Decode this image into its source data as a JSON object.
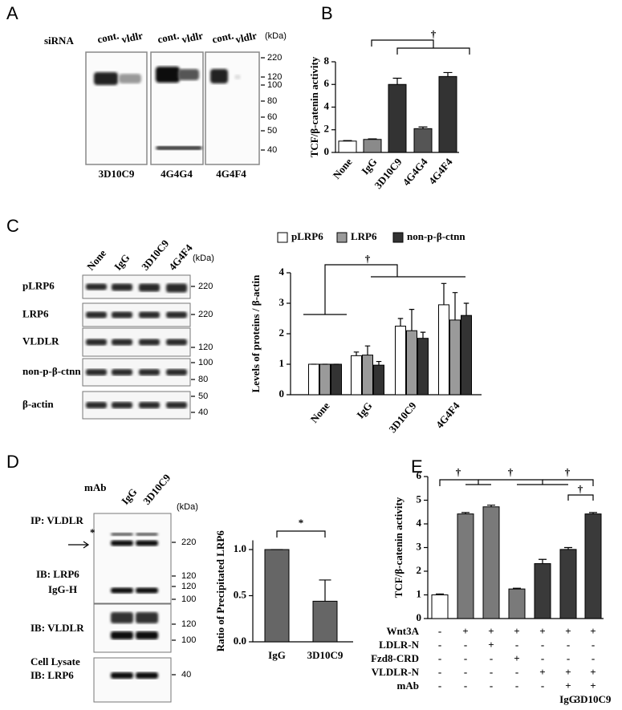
{
  "panel_letters": [
    "A",
    "B",
    "C",
    "D",
    "E"
  ],
  "blot_a": {
    "row_label": "siRNA",
    "lanes": [
      "cont.",
      "vldlr",
      "cont.",
      "vldlr",
      "cont.",
      "vldlr"
    ],
    "unit": "(kDa)",
    "markers": [
      220,
      120,
      100,
      80,
      60,
      50,
      40
    ],
    "antibodies": [
      "3D10C9",
      "4G4G4",
      "4G4F4"
    ]
  },
  "blot_c": {
    "lanes": [
      "None",
      "IgG",
      "3D10C9",
      "4G4F4"
    ],
    "unit": "(kDa)",
    "rows": [
      "pLRP6",
      "LRP6",
      "VLDLR",
      "non-p-β-ctnn",
      "β-actin"
    ],
    "markers": [
      220,
      220,
      120,
      100,
      80,
      50,
      40
    ]
  },
  "blot_d": {
    "row_label": "mAb",
    "lanes": [
      "IgG",
      "3D10C9"
    ],
    "unit": "(kDa)",
    "labels": [
      "IP: VLDLR",
      "*",
      "IB: LRP6",
      "IgG-H",
      "IB: VLDLR",
      "Cell Lysate",
      "IB: LRP6"
    ],
    "markers": [
      220,
      120,
      120,
      100,
      120,
      100,
      40
    ]
  },
  "chart_data": [
    {
      "type": "bar",
      "ylabel": "TCF/β-catenin activity",
      "categories": [
        "None",
        "IgG",
        "3D10C9",
        "4G4G4",
        "4G4F4"
      ],
      "values": [
        1.0,
        1.15,
        6.0,
        2.1,
        6.7
      ],
      "errors": [
        0.05,
        0.05,
        0.55,
        0.15,
        0.35
      ],
      "colors": [
        "#ffffff",
        "#8a8a8a",
        "#333333",
        "#555555",
        "#333333"
      ],
      "ylim": [
        0,
        8
      ],
      "yticks": [
        0,
        2,
        4,
        6,
        8
      ],
      "annotations": [
        "†"
      ]
    },
    {
      "type": "bar",
      "ylabel": "Levels of proteins / β-actin",
      "categories": [
        "None",
        "IgG",
        "3D10C9",
        "4G4F4"
      ],
      "series": [
        {
          "name": "pLRP6",
          "color": "#ffffff",
          "values": [
            1.0,
            1.28,
            2.25,
            2.95
          ],
          "errors": [
            0,
            0.12,
            0.25,
            0.7
          ]
        },
        {
          "name": "LRP6",
          "color": "#9a9a9a",
          "values": [
            1.0,
            1.3,
            2.1,
            2.45
          ],
          "errors": [
            0,
            0.3,
            0.7,
            0.9
          ]
        },
        {
          "name": "non-p-β-ctnn",
          "color": "#333333",
          "values": [
            1.0,
            0.97,
            1.85,
            2.6
          ],
          "errors": [
            0,
            0.12,
            0.2,
            0.4
          ]
        }
      ],
      "ylim": [
        0,
        4
      ],
      "yticks": [
        0,
        1,
        2,
        3,
        4
      ],
      "legend": "top",
      "annotations": [
        "†"
      ]
    },
    {
      "type": "bar",
      "ylabel": "Ratio of Precipitated LRP6",
      "categories": [
        "IgG",
        "3D10C9"
      ],
      "values": [
        1.0,
        0.44
      ],
      "errors": [
        0,
        0.23
      ],
      "colors": [
        "#666666",
        "#666666"
      ],
      "ylim": [
        0,
        1.1
      ],
      "yticks": [
        {
          "value": 0,
          "label": "0.0"
        },
        {
          "value": 0.5,
          "label": "0.5"
        },
        {
          "value": 1,
          "label": "1.0"
        }
      ],
      "annotations": [
        "*"
      ]
    },
    {
      "type": "bar",
      "ylabel": "TCF/β-catenin activity",
      "categories": [
        null,
        null,
        null,
        null,
        null,
        "IgG",
        "3D10C9"
      ],
      "values": [
        1.0,
        4.42,
        4.72,
        1.25,
        2.32,
        2.92,
        4.42
      ],
      "errors": [
        0.04,
        0.06,
        0.07,
        0.03,
        0.18,
        0.08,
        0.06
      ],
      "colors": [
        "#ffffff",
        "#7a7a7a",
        "#7a7a7a",
        "#7a7a7a",
        "#3a3a3a",
        "#3a3a3a",
        "#3a3a3a"
      ],
      "ylim": [
        0,
        6
      ],
      "yticks": [
        0,
        1,
        2,
        3,
        4,
        5,
        6
      ],
      "annotations": [
        "†",
        "†",
        "†",
        "†"
      ],
      "conditions": [
        {
          "label": "Wnt3A",
          "marks": [
            "-",
            "+",
            "+",
            "+",
            "+",
            "+",
            "+"
          ]
        },
        {
          "label": "LDLR-N",
          "marks": [
            "-",
            "-",
            "+",
            "-",
            "-",
            "-",
            "-"
          ]
        },
        {
          "label": "Fzd8-CRD",
          "marks": [
            "-",
            "-",
            "-",
            "+",
            "-",
            "-",
            "-"
          ]
        },
        {
          "label": "VLDLR-N",
          "marks": [
            "-",
            "-",
            "-",
            "-",
            "+",
            "+",
            "+"
          ]
        },
        {
          "label": "mAb",
          "marks": [
            "-",
            "-",
            "-",
            "-",
            "-",
            "+",
            "+"
          ]
        }
      ]
    }
  ]
}
